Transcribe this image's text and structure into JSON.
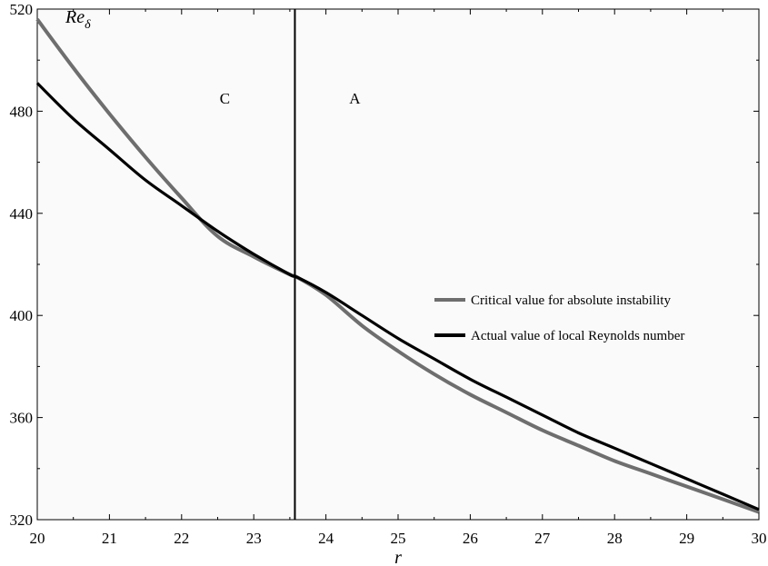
{
  "chart_data": {
    "type": "line",
    "xlabel": "r",
    "ylabel": "Re",
    "ylabel_sub": "δ",
    "xlim": [
      20,
      30
    ],
    "ylim": [
      320,
      520
    ],
    "xticks": [
      20,
      21,
      22,
      23,
      24,
      25,
      26,
      27,
      28,
      29,
      30
    ],
    "yticks": [
      320,
      360,
      400,
      440,
      480,
      520
    ],
    "grid": false,
    "legend_position": "right",
    "series": [
      {
        "name": "Critical value for absolute instability",
        "color": "#6e6e6e",
        "x": [
          20,
          20.5,
          21,
          21.5,
          22,
          22.5,
          23,
          23.5,
          23.6,
          24,
          24.5,
          25,
          25.5,
          26,
          26.5,
          27,
          27.5,
          28,
          28.5,
          29,
          29.5,
          30
        ],
        "y": [
          516,
          497,
          479,
          462,
          446,
          431,
          423,
          416,
          415,
          408,
          396,
          386,
          377,
          369,
          362,
          355,
          349,
          343,
          338,
          333,
          328,
          323
        ]
      },
      {
        "name": "Actual value of local Reynolds number",
        "color": "#000000",
        "x": [
          20,
          20.5,
          21,
          21.5,
          22,
          22.5,
          23,
          23.5,
          23.6,
          24,
          24.5,
          25,
          25.5,
          26,
          26.5,
          27,
          27.5,
          28,
          28.5,
          29,
          29.5,
          30
        ],
        "y": [
          491,
          477,
          465,
          453,
          443,
          433,
          424,
          416,
          415,
          409,
          400,
          391,
          383,
          375,
          368,
          361,
          354,
          348,
          342,
          336,
          330,
          324
        ]
      }
    ],
    "vertical_line": {
      "x": 23.57
    },
    "regions": [
      {
        "label": "C",
        "x": 22.6,
        "y": 483
      },
      {
        "label": "A",
        "x": 24.4,
        "y": 483
      }
    ]
  }
}
